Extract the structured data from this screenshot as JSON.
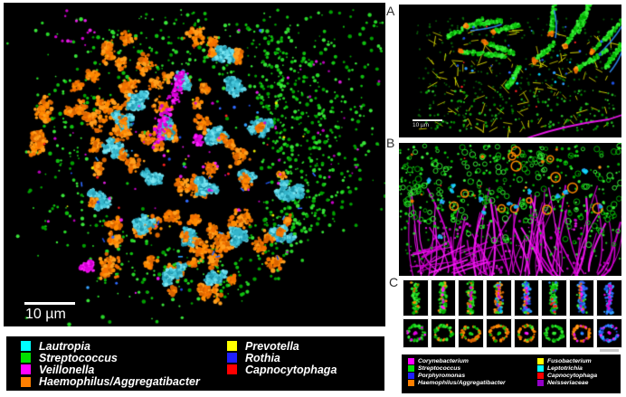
{
  "palette": {
    "cyan": "#00FFFF",
    "green": "#00E000",
    "magenta": "#FF00FF",
    "orange": "#FF7F00",
    "yellow": "#FFFF00",
    "blue": "#1F1FFF",
    "red": "#FF0000",
    "purple": "#9400C8",
    "background": "#000000",
    "page": "#FFFFFF"
  },
  "main_panel": {
    "scale_bar_label": "10 µm"
  },
  "panel_a": {
    "label": "A",
    "scale_bar_label": "10 µm"
  },
  "panel_b": {
    "label": "B"
  },
  "panel_c": {
    "label": "C",
    "thumbs": [
      {
        "t": "long",
        "m": "green",
        "a": [
          "orange"
        ],
        "c": null
      },
      {
        "t": "long",
        "m": "green",
        "a": [
          "orange"
        ],
        "c": "magenta"
      },
      {
        "t": "long",
        "m": "green",
        "a": [
          "orange"
        ],
        "c": "magenta"
      },
      {
        "t": "long",
        "m": "orange",
        "a": [
          "green",
          "blue",
          "cyan"
        ],
        "c": "magenta"
      },
      {
        "t": "long",
        "m": "blue",
        "a": [
          "green",
          "orange"
        ],
        "c": "magenta"
      },
      {
        "t": "long",
        "m": "green",
        "a": [
          "blue",
          "red"
        ],
        "c": null
      },
      {
        "t": "long",
        "m": "blue",
        "a": [
          "orange",
          "green"
        ],
        "c": "magenta"
      },
      {
        "t": "long",
        "m": "blue",
        "a": [
          "magenta"
        ],
        "c": "magenta"
      },
      {
        "t": "ring",
        "m": "green",
        "a": [
          "magenta"
        ],
        "c": "magenta"
      },
      {
        "t": "ring",
        "m": "green",
        "a": [
          "orange"
        ],
        "c": null
      },
      {
        "t": "ring",
        "m": "orange",
        "a": [
          "green"
        ],
        "c": "green"
      },
      {
        "t": "ring",
        "m": "orange",
        "a": [
          "green"
        ],
        "c": "green"
      },
      {
        "t": "ring",
        "m": "orange",
        "a": [
          "green"
        ],
        "c": "magenta"
      },
      {
        "t": "ring",
        "m": "green",
        "a": [],
        "c": "green"
      },
      {
        "t": "ring",
        "m": "orange",
        "a": [
          "magenta"
        ],
        "c": "blue"
      },
      {
        "t": "ring",
        "m": "blue",
        "a": [
          "magenta"
        ],
        "c": "magenta"
      }
    ]
  },
  "main_legend": {
    "column1": [
      {
        "label": "Lautropia",
        "color": "#00FFFF"
      },
      {
        "label": "Streptococcus",
        "color": "#00E000"
      },
      {
        "label": "Veillonella",
        "color": "#FF00FF"
      },
      {
        "label": "Haemophilus/Aggregatibacter",
        "color": "#FF7F00"
      }
    ],
    "column2": [
      {
        "label": "Prevotella",
        "color": "#FFFF00"
      },
      {
        "label": "Rothia",
        "color": "#1F1FFF"
      },
      {
        "label": "Capnocytophaga",
        "color": "#FF0000"
      }
    ]
  },
  "side_legend": {
    "column1": [
      {
        "label": "Corynebacterium",
        "color": "#FF00FF"
      },
      {
        "label": "Streptococcus",
        "color": "#00E000"
      },
      {
        "label": "Porphyromonas",
        "color": "#1F1FFF"
      },
      {
        "label": "Haemophilus/Aggregatibacter",
        "color": "#FF7F00"
      }
    ],
    "column2": [
      {
        "label": "Fusobacterium",
        "color": "#FFFF00"
      },
      {
        "label": "Leptotrichia",
        "color": "#00FFFF"
      },
      {
        "label": "Capnocytophaga",
        "color": "#FF0000"
      },
      {
        "label": "Neisseriaceae",
        "color": "#9400C8"
      }
    ]
  }
}
